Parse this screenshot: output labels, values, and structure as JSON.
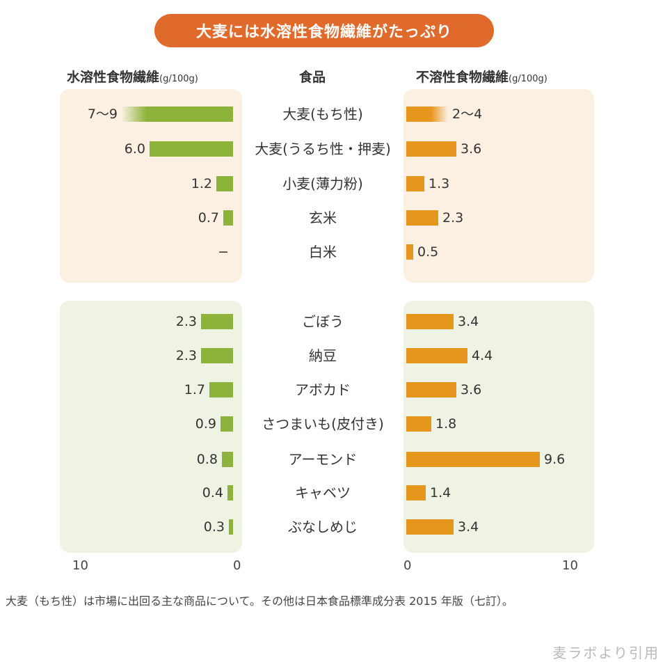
{
  "title": "大麦には水溶性食物繊維がたっぷり",
  "headers": {
    "left": "水溶性食物繊維",
    "left_unit": "(g/100g)",
    "center": "食品",
    "right": "不溶性食物繊維",
    "right_unit": "(g/100g)"
  },
  "colors": {
    "title_bg": "#e06a2c",
    "soluble_bar": "#8db33a",
    "insoluble_bar": "#e7961d",
    "grain_panel": "#fbf0e2",
    "veg_panel": "#eef3e3"
  },
  "chart_data": {
    "type": "bar",
    "orientation": "horizontal-butterfly",
    "categories": [
      "大麦(もち性)",
      "大麦(うるち性・押麦)",
      "小麦(薄力粉)",
      "玄米",
      "白米",
      "ごぼう",
      "納豆",
      "アボカド",
      "さつまいも(皮付き)",
      "アーモンド",
      "キャベツ",
      "ぶなしめじ"
    ],
    "series": [
      {
        "name": "水溶性食物繊維",
        "values": [
          8,
          6.0,
          1.2,
          0.7,
          null,
          2.3,
          2.3,
          1.7,
          0.9,
          0.8,
          0.4,
          0.3
        ],
        "labels": [
          "7〜9",
          "6.0",
          "1.2",
          "0.7",
          "−",
          "2.3",
          "2.3",
          "1.7",
          "0.9",
          "0.8",
          "0.4",
          "0.3"
        ]
      },
      {
        "name": "不溶性食物繊維",
        "values": [
          3,
          3.6,
          1.3,
          2.3,
          0.5,
          3.4,
          4.4,
          3.6,
          1.8,
          9.6,
          1.4,
          3.4
        ],
        "labels": [
          "2〜4",
          "3.6",
          "1.3",
          "2.3",
          "0.5",
          "3.4",
          "4.4",
          "3.6",
          "1.8",
          "9.6",
          "1.4",
          "3.4"
        ]
      }
    ],
    "groups": [
      [
        0,
        4
      ],
      [
        5,
        11
      ]
    ],
    "xlim": [
      0,
      10
    ],
    "axis_ticks_left": [
      "10",
      "0"
    ],
    "axis_ticks_right": [
      "0",
      "10"
    ]
  },
  "footnote": "大麦（もち性）は市場に出回る主な商品について。その他は日本食品標準成分表 2015 年版（七訂）。",
  "source": "麦ラボより引用"
}
